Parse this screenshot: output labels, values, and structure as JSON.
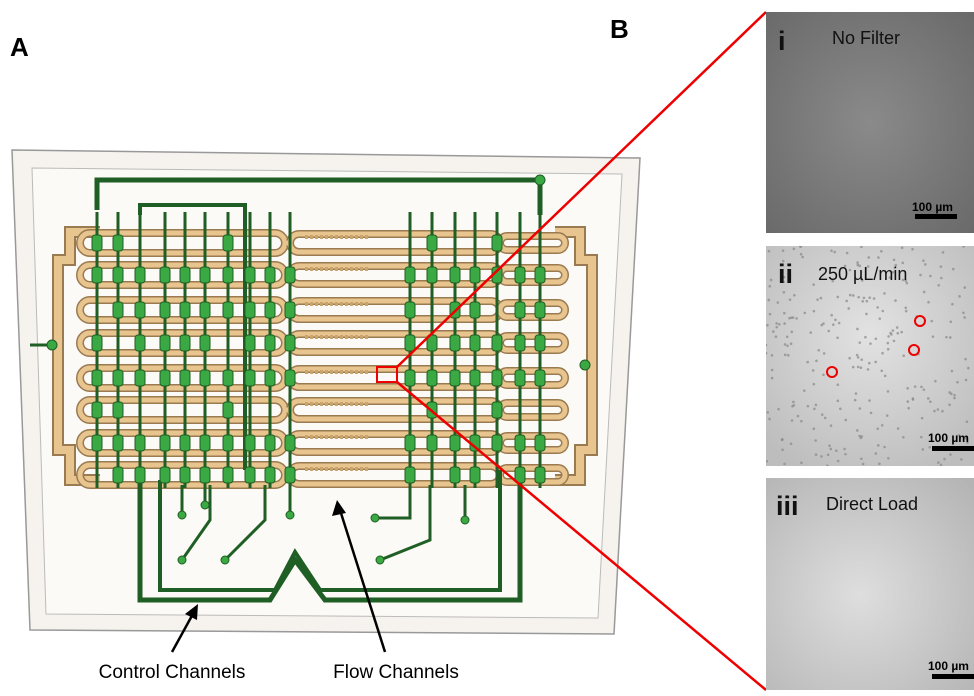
{
  "panel_labels": {
    "a": "A",
    "b": "B"
  },
  "annotations": [
    "Control Channels",
    "Flow Channels"
  ],
  "micrographs": [
    {
      "numeral": "i",
      "label": "No Filter",
      "scale_bar": "100 µm"
    },
    {
      "numeral": "ii",
      "label": "250 µL/min",
      "scale_bar": "100 µm"
    },
    {
      "numeral": "iii",
      "label": "Direct Load",
      "scale_bar": "100 µm"
    }
  ]
}
